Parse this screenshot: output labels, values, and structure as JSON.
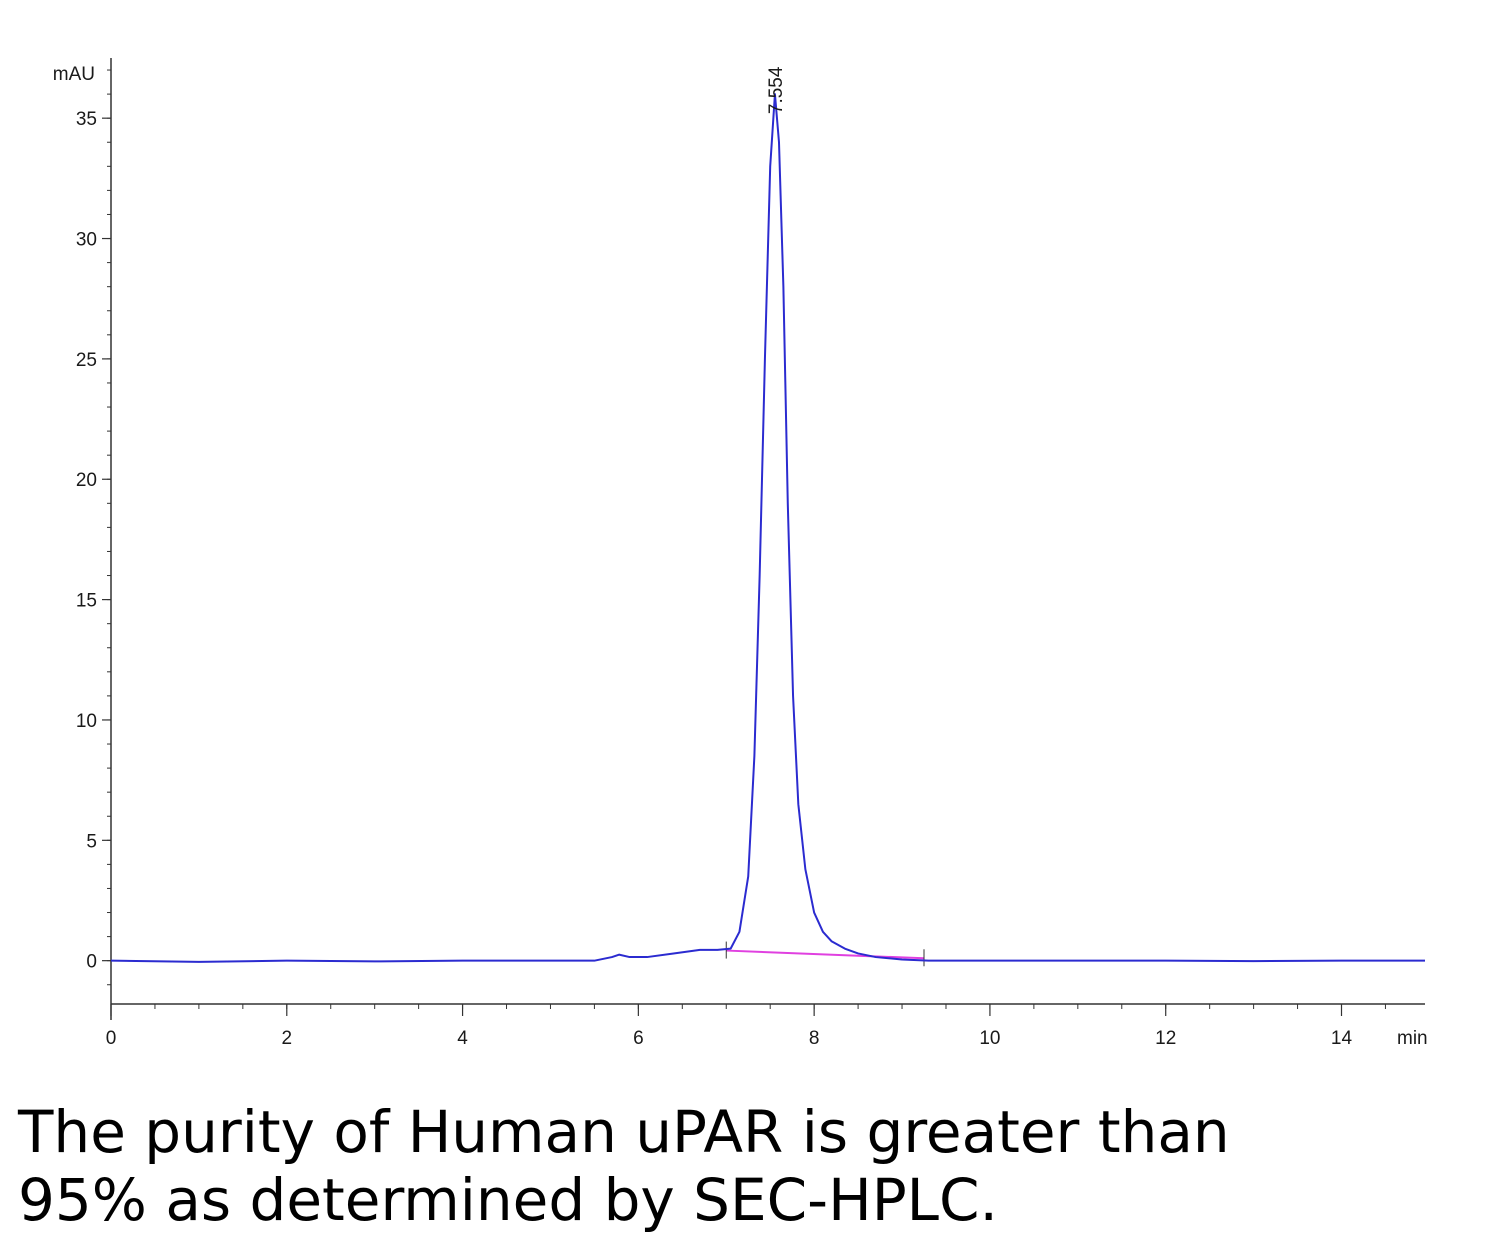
{
  "chart_data": {
    "type": "line",
    "ylabel": "mAU",
    "xlabel": "min",
    "xlim": [
      0,
      14.95
    ],
    "ylim": [
      -1.8,
      37.5
    ],
    "x_ticks": [
      0,
      2,
      4,
      6,
      8,
      10,
      12,
      14
    ],
    "y_ticks": [
      0,
      5,
      10,
      15,
      20,
      25,
      30,
      35
    ],
    "peak_label": "7.554",
    "peak": {
      "x": 7.554,
      "y": 36.0
    },
    "series": [
      {
        "color": "#2b2bd0",
        "x": [
          0,
          1,
          2,
          3,
          4,
          5,
          5.5,
          5.7,
          5.78,
          5.9,
          6.1,
          6.4,
          6.7,
          6.9,
          7.05,
          7.15,
          7.25,
          7.32,
          7.38,
          7.44,
          7.5,
          7.554,
          7.6,
          7.65,
          7.7,
          7.76,
          7.82,
          7.9,
          8.0,
          8.1,
          8.2,
          8.35,
          8.5,
          8.7,
          9.0,
          9.3,
          10,
          11,
          12,
          13,
          14,
          14.95
        ],
        "y": [
          0.0,
          -0.05,
          0.0,
          -0.03,
          0.0,
          0.0,
          0.0,
          0.15,
          0.25,
          0.15,
          0.15,
          0.3,
          0.45,
          0.45,
          0.5,
          1.2,
          3.5,
          8.5,
          16.0,
          25.0,
          33.0,
          36.0,
          34.0,
          28.0,
          19.0,
          11.0,
          6.5,
          3.8,
          2.0,
          1.2,
          0.8,
          0.5,
          0.3,
          0.15,
          0.05,
          0.0,
          0.0,
          0.0,
          0.0,
          -0.02,
          0.0,
          0.0
        ]
      }
    ],
    "baseline": {
      "color": "#e040e0",
      "x": [
        7.0,
        9.25
      ],
      "y": [
        0.42,
        0.1
      ]
    },
    "integration_marks": [
      7.0,
      9.25
    ]
  },
  "caption": {
    "line1": "The purity of Human uPAR is greater than",
    "line2": "95% as determined by SEC-HPLC."
  }
}
